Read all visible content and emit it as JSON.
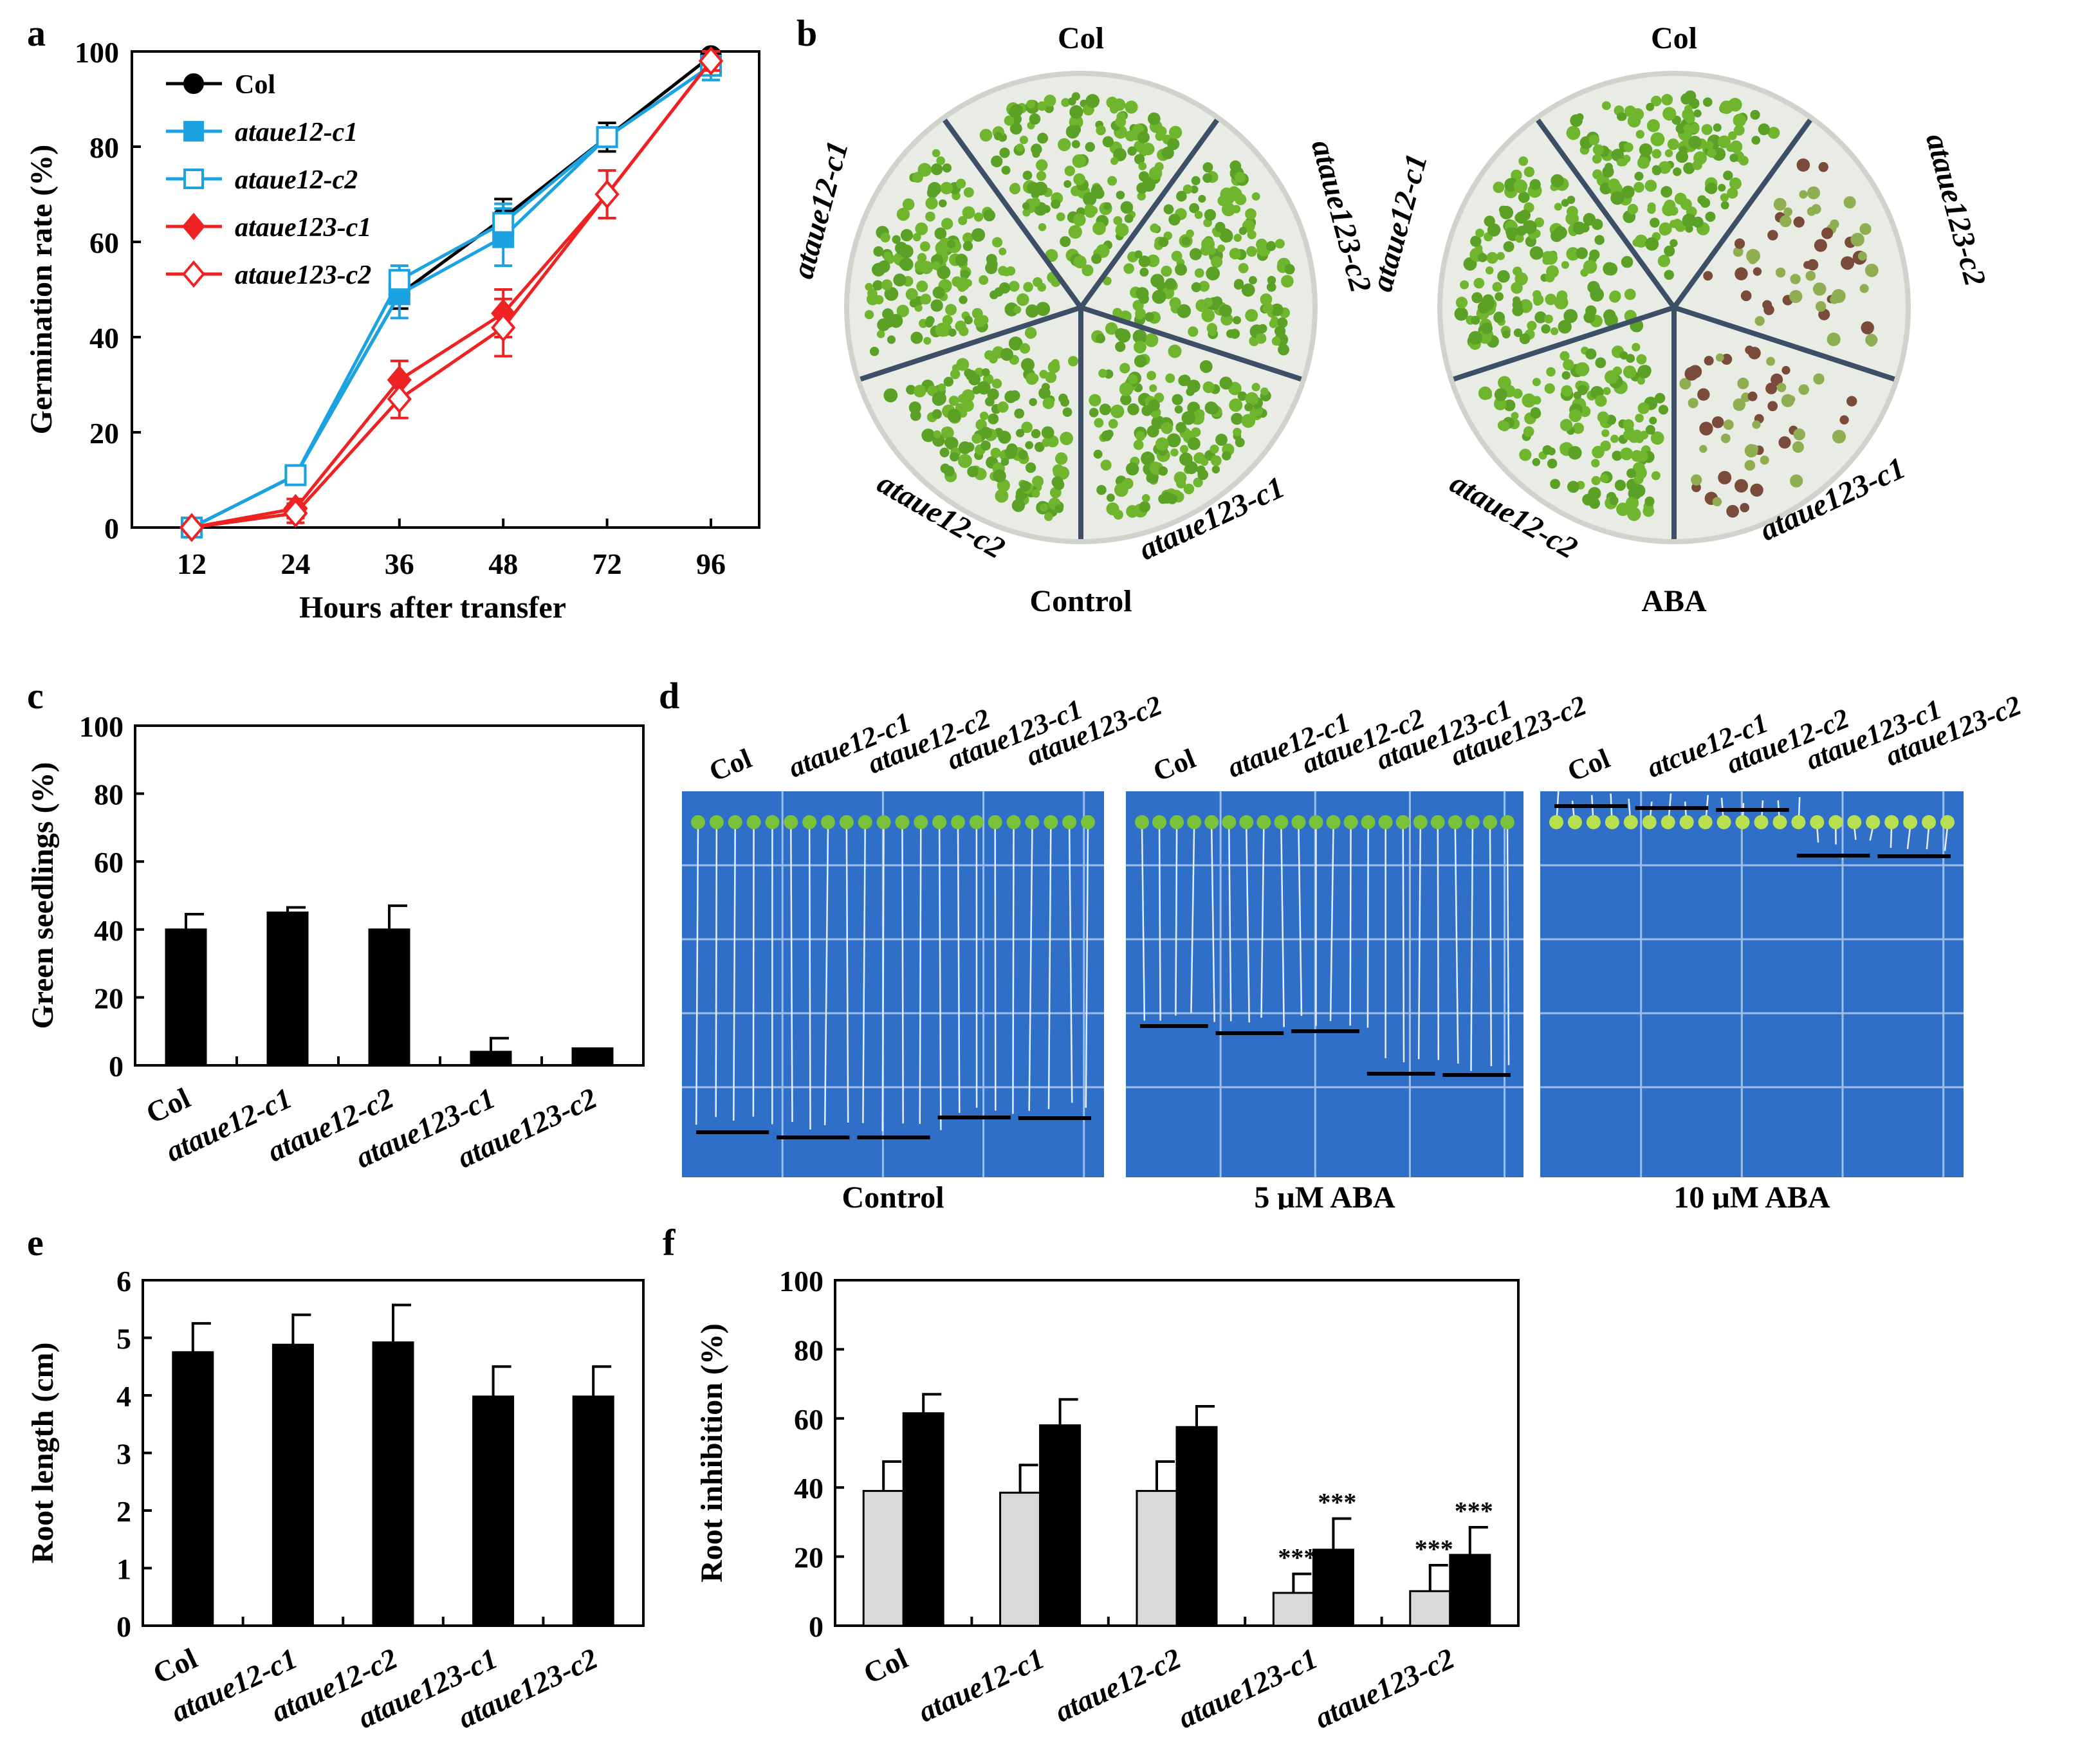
{
  "panel_labels": {
    "a": "a",
    "b": "b",
    "c": "c",
    "d": "d",
    "e": "e",
    "f": "f"
  },
  "colors": {
    "col": "#000000",
    "c12": "#1aa3e0",
    "c123": "#ee2222",
    "bar_black": "#000000",
    "bar_grey": "#d9d9d9",
    "plate": "#e9ece4",
    "seedling": "#6fb52e",
    "blue_plate": "#2f6fc8"
  },
  "plates_b": {
    "control": {
      "caption": "Control",
      "top": "Col",
      "left": "ataue12-c1",
      "right": "ataue123-c2",
      "bottom_left": "ataue12-c2",
      "bottom_right": "ataue123-c1"
    },
    "aba": {
      "caption": "ABA",
      "top": "Col",
      "left": "ataue12-c1",
      "right": "ataue123-c2",
      "bottom_left": "ataue12-c2",
      "bottom_right": "ataue123-c1"
    }
  },
  "plates_d": [
    {
      "caption": "Control",
      "labels": [
        "Col",
        "ataue12-c1",
        "ataue12-c2",
        "ataue123-c1",
        "ataue123-c2"
      ]
    },
    {
      "caption": "5 μM ABA",
      "labels": [
        "Col",
        "ataue12-c1",
        "ataue12-c2",
        "ataue123-c1",
        "ataue123-c2"
      ]
    },
    {
      "caption": "10 μM ABA",
      "labels": [
        "Col",
        "atcue12-c1",
        "ataue12-c2",
        "ataue123-c1",
        "ataue123-c2"
      ]
    }
  ],
  "chart_data": [
    {
      "id": "a",
      "type": "line",
      "title": "",
      "xlabel": "Hours after transfer",
      "ylabel": "Germination rate (%)",
      "categories": [
        "12",
        "24",
        "36",
        "48",
        "72",
        "96"
      ],
      "ylim": [
        0,
        100
      ],
      "yticks": [
        0,
        20,
        40,
        60,
        80,
        100
      ],
      "series": [
        {
          "name": "Col",
          "values": [
            0,
            11,
            49,
            65,
            82,
            99
          ],
          "errors": [
            0,
            1,
            3,
            4,
            3,
            1
          ]
        },
        {
          "name": "ataue12-c1",
          "values": [
            0,
            11,
            49,
            61,
            82,
            97
          ],
          "errors": [
            0,
            1,
            5,
            6,
            2,
            3
          ]
        },
        {
          "name": "ataue12-c2",
          "values": [
            0,
            11,
            52,
            64,
            82,
            97
          ],
          "errors": [
            0,
            1,
            3,
            4,
            2,
            3
          ]
        },
        {
          "name": "ataue123-c1",
          "values": [
            0,
            4,
            31,
            45,
            70,
            98
          ],
          "errors": [
            0,
            2,
            4,
            5,
            5,
            2
          ]
        },
        {
          "name": "ataue123-c2",
          "values": [
            0,
            3,
            27,
            42,
            70,
            98
          ],
          "errors": [
            0,
            2,
            4,
            6,
            5,
            2
          ]
        }
      ]
    },
    {
      "id": "c",
      "type": "bar",
      "title": "",
      "xlabel": "",
      "ylabel": "Green seedlings (%)",
      "categories": [
        "Col",
        "ataue12-c1",
        "ataue12-c2",
        "ataue123-c1",
        "ataue123-c2"
      ],
      "values": [
        40,
        45,
        40,
        4,
        5
      ],
      "errors": [
        4.5,
        1.5,
        7,
        4,
        0
      ],
      "ylim": [
        0,
        100
      ],
      "yticks": [
        0,
        20,
        40,
        60,
        80,
        100
      ]
    },
    {
      "id": "e",
      "type": "bar",
      "title": "",
      "xlabel": "",
      "ylabel": "Root length (cm)",
      "categories": [
        "Col",
        "ataue12-c1",
        "ataue12-c2",
        "ataue123-c1",
        "ataue123-c2"
      ],
      "values": [
        4.75,
        4.88,
        4.92,
        3.98,
        3.98
      ],
      "errors": [
        0.5,
        0.52,
        0.65,
        0.52,
        0.52
      ],
      "ylim": [
        0,
        6
      ],
      "yticks": [
        0,
        1,
        2,
        3,
        4,
        5,
        6
      ]
    },
    {
      "id": "f",
      "type": "bar",
      "title": "",
      "xlabel": "",
      "ylabel": "Root inhibition (%)",
      "categories": [
        "Col",
        "ataue12-c1",
        "ataue12-c2",
        "ataue123-c1",
        "ataue123-c2"
      ],
      "series": [
        {
          "name": "5 μM ABA",
          "values": [
            39,
            38.5,
            39,
            9.5,
            10
          ],
          "errors": [
            8.5,
            8,
            8.5,
            5.5,
            7.5
          ]
        },
        {
          "name": "10 μM ABA",
          "values": [
            61.5,
            58,
            57.5,
            22,
            20.5
          ],
          "errors": [
            5.5,
            7.5,
            6,
            9,
            8
          ]
        }
      ],
      "annotations": [
        {
          "category": "ataue123-c1",
          "series": 0,
          "text": "***"
        },
        {
          "category": "ataue123-c1",
          "series": 1,
          "text": "***"
        },
        {
          "category": "ataue123-c2",
          "series": 0,
          "text": "***"
        },
        {
          "category": "ataue123-c2",
          "series": 1,
          "text": "***"
        }
      ],
      "ylim": [
        0,
        100
      ],
      "yticks": [
        0,
        20,
        40,
        60,
        80,
        100
      ]
    }
  ]
}
